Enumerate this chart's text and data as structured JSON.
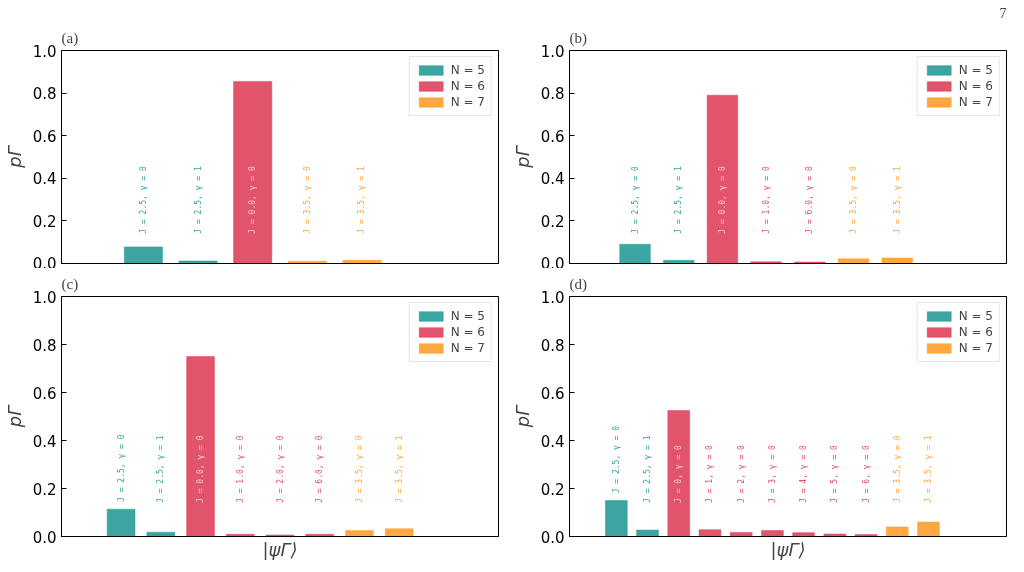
{
  "chart_data": [
    {
      "type": "bar",
      "title": "(a)",
      "ylabel": "pΓ",
      "stacked": true,
      "ylim": [
        0,
        1
      ],
      "categories": [
        "J = 2.5, γ = 0",
        "J = 2.5, γ = 1",
        "J = 0.0, γ = 0",
        "J = 3.5, γ = 0",
        "J = 3.5, γ = 1"
      ],
      "yticks": [
        {
          "value": 0,
          "label": "0.0"
        },
        {
          "value": 0.2,
          "label": "0.2"
        },
        {
          "value": 0.4,
          "label": "0.4"
        },
        {
          "value": 0.6,
          "label": "0.6"
        },
        {
          "value": 0.8,
          "label": "0.8"
        },
        {
          "value": 1,
          "label": "1.0"
        }
      ],
      "legend": "top right",
      "series": [
        {
          "name": "N = 5",
          "color": "#2a9d99",
          "values": [
            0.078,
            0.012,
            null,
            null,
            null
          ]
        },
        {
          "name": "N = 6",
          "color": "#e0445f",
          "values": [
            null,
            null,
            0.855,
            null,
            null
          ]
        },
        {
          "name": "N = 7",
          "color": "#ffa12f",
          "values": [
            null,
            null,
            null,
            0.011,
            0.015
          ]
        }
      ]
    },
    {
      "type": "bar",
      "title": "(b)",
      "ylabel": "pΓ",
      "stacked": true,
      "ylim": [
        0,
        1
      ],
      "categories": [
        "J = 2.5, γ = 0",
        "J = 2.5, γ = 1",
        "J = 0.0, γ = 0",
        "J = 1.0, γ = 0",
        "J = 6.0, γ = 0",
        "J = 3.5, γ = 0",
        "J = 3.5, γ = 1"
      ],
      "yticks": [
        {
          "value": 0,
          "label": "0.0"
        },
        {
          "value": 0.2,
          "label": "0.2"
        },
        {
          "value": 0.4,
          "label": "0.4"
        },
        {
          "value": 0.6,
          "label": "0.6"
        },
        {
          "value": 0.8,
          "label": "0.8"
        },
        {
          "value": 1,
          "label": "1.0"
        }
      ],
      "legend": "top right",
      "series": [
        {
          "name": "N = 5",
          "color": "#2a9d99",
          "values": [
            0.09,
            0.015,
            null,
            null,
            null,
            null,
            null
          ]
        },
        {
          "name": "N = 6",
          "color": "#e0445f",
          "values": [
            null,
            null,
            0.79,
            0.008,
            0.007,
            null,
            null
          ]
        },
        {
          "name": "N = 7",
          "color": "#ffa12f",
          "values": [
            null,
            null,
            null,
            null,
            null,
            0.022,
            0.026
          ]
        }
      ],
      "annotations": [
        "7"
      ]
    },
    {
      "type": "bar",
      "title": "(c)",
      "ylabel": "pΓ",
      "xlabel": "|ψΓ⟩",
      "stacked": true,
      "ylim": [
        0,
        1
      ],
      "categories": [
        "J = 2.5, γ = 0",
        "J = 2.5, γ = 1",
        "J = 0.0, γ = 0",
        "J = 1.0, γ = 0",
        "J = 2.0, γ = 0",
        "J = 6.0, γ = 0",
        "J = 3.5, γ = 0",
        "J = 3.5, γ = 1"
      ],
      "yticks": [
        {
          "value": 0,
          "label": "0.0"
        },
        {
          "value": 0.2,
          "label": "0.2"
        },
        {
          "value": 0.4,
          "label": "0.4"
        },
        {
          "value": 0.6,
          "label": "0.6"
        },
        {
          "value": 0.8,
          "label": "0.8"
        },
        {
          "value": 1,
          "label": "1.0"
        }
      ],
      "legend": "top right",
      "series": [
        {
          "name": "N = 5",
          "color": "#2a9d99",
          "values": [
            0.114,
            0.018,
            null,
            null,
            null,
            null,
            null,
            null
          ]
        },
        {
          "name": "N = 6",
          "color": "#e0445f",
          "values": [
            null,
            null,
            0.75,
            0.009,
            0.006,
            0.009,
            null,
            null
          ]
        },
        {
          "name": "N = 7",
          "color": "#ffa12f",
          "values": [
            null,
            null,
            null,
            null,
            null,
            null,
            0.025,
            0.032
          ]
        }
      ]
    },
    {
      "type": "bar",
      "title": "(d)",
      "ylabel": "pΓ",
      "xlabel": "|ψΓ⟩",
      "stacked": true,
      "ylim": [
        0,
        1
      ],
      "categories": [
        "J = 2.5, γ = 0",
        "J = 2.5, γ = 1",
        "J = 0, γ = 0",
        "J = 1, γ = 0",
        "J = 2, γ = 0",
        "J = 3, γ = 0",
        "J = 4, γ = 0",
        "J = 5, γ = 0",
        "J = 6, γ = 0",
        "J = 3.5, γ = 0",
        "J = 3.5, γ = 1"
      ],
      "yticks": [
        {
          "value": 0,
          "label": "0.0"
        },
        {
          "value": 0.2,
          "label": "0.2"
        },
        {
          "value": 0.4,
          "label": "0.4"
        },
        {
          "value": 0.6,
          "label": "0.6"
        },
        {
          "value": 0.8,
          "label": "0.8"
        },
        {
          "value": 1,
          "label": "1.0"
        }
      ],
      "legend": "top right",
      "series": [
        {
          "name": "N = 5",
          "color": "#2a9d99",
          "values": [
            0.15,
            0.027,
            null,
            null,
            null,
            null,
            null,
            null,
            null,
            null,
            null
          ]
        },
        {
          "name": "N = 6",
          "color": "#e0445f",
          "values": [
            null,
            null,
            0.525,
            0.028,
            0.017,
            0.025,
            0.016,
            0.01,
            0.008,
            null,
            null
          ]
        },
        {
          "name": "N = 7",
          "color": "#ffa12f",
          "values": [
            null,
            null,
            null,
            null,
            null,
            null,
            null,
            null,
            null,
            0.04,
            0.06
          ]
        }
      ]
    }
  ]
}
